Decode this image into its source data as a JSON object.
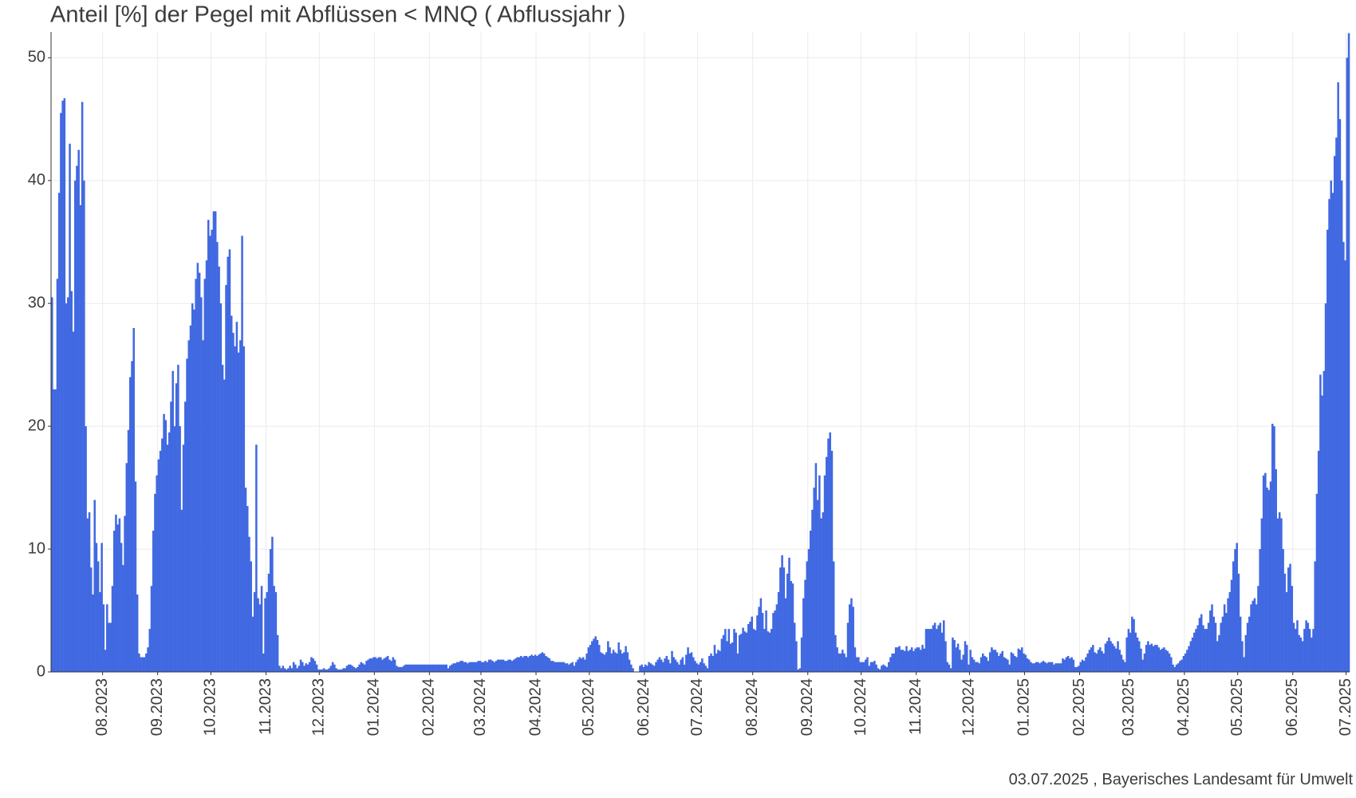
{
  "chart_data": {
    "type": "bar",
    "title": "Anteil [%] der Pegel mit Abflüssen < MNQ ( Abflussjahr )",
    "caption": "03.07.2025 , Bayerisches Landesamt für Umwelt",
    "color": "#4169e1",
    "grid": true,
    "ylim": [
      0,
      52.1
    ],
    "yticks": [
      0,
      10,
      20,
      30,
      40,
      50
    ],
    "xlim": [
      0,
      731
    ],
    "xticks": [
      {
        "value": 29,
        "label": "08.2023"
      },
      {
        "value": 60,
        "label": "09.2023"
      },
      {
        "value": 90,
        "label": "10.2023"
      },
      {
        "value": 121,
        "label": "11.2023"
      },
      {
        "value": 151,
        "label": "12.2023"
      },
      {
        "value": 182,
        "label": "01.2024"
      },
      {
        "value": 213,
        "label": "02.2024"
      },
      {
        "value": 242,
        "label": "03.2024"
      },
      {
        "value": 273,
        "label": "04.2024"
      },
      {
        "value": 303,
        "label": "05.2024"
      },
      {
        "value": 334,
        "label": "06.2024"
      },
      {
        "value": 364,
        "label": "07.2024"
      },
      {
        "value": 395,
        "label": "08.2024"
      },
      {
        "value": 426,
        "label": "09.2024"
      },
      {
        "value": 456,
        "label": "10.2024"
      },
      {
        "value": 487,
        "label": "11.2024"
      },
      {
        "value": 517,
        "label": "12.2024"
      },
      {
        "value": 548,
        "label": "01.2025"
      },
      {
        "value": 579,
        "label": "02.2025"
      },
      {
        "value": 607,
        "label": "03.2025"
      },
      {
        "value": 638,
        "label": "04.2025"
      },
      {
        "value": 668,
        "label": "05.2025"
      },
      {
        "value": 699,
        "label": "06.2025"
      },
      {
        "value": 729,
        "label": "07.2025"
      }
    ],
    "values": [
      30.5,
      23,
      23,
      32,
      39,
      45.5,
      46.5,
      46.7,
      30,
      30.5,
      43,
      31,
      27.7,
      40,
      41.2,
      42.5,
      38,
      46.4,
      40,
      20,
      12.5,
      13,
      8.5,
      6.3,
      14,
      10.5,
      9,
      6.5,
      10.5,
      5.5,
      1.8,
      5.5,
      4,
      4,
      7,
      11.5,
      12.8,
      12,
      12.5,
      10.5,
      8.7,
      12.7,
      17,
      19.7,
      24,
      25.3,
      28,
      15.5,
      6.3,
      1.5,
      1.2,
      1.2,
      1.2,
      1.5,
      2,
      3.5,
      7,
      11.5,
      14.5,
      16,
      17.3,
      18,
      19,
      21,
      20.5,
      18.5,
      19.5,
      22,
      24.5,
      20,
      23.5,
      25,
      20,
      13.2,
      18.5,
      22,
      25.5,
      27,
      28.2,
      30,
      29.5,
      32,
      33.3,
      32.5,
      30.5,
      27,
      32,
      33.5,
      36.8,
      35.5,
      36,
      37.5,
      37.5,
      35,
      33,
      30,
      25,
      23.8,
      31.5,
      33.8,
      34.4,
      29,
      27.6,
      26.5,
      28.5,
      26,
      27,
      35.5,
      26.5,
      15,
      13.5,
      11,
      9,
      4.5,
      6.5,
      18.5,
      6,
      5.5,
      7,
      1.5,
      6,
      6.5,
      8,
      10,
      11,
      7,
      6.5,
      3,
      0.5,
      0.3,
      0.5,
      0.3,
      0.2,
      0.3,
      0.5,
      0.3,
      0.8,
      0.6,
      0.3,
      0.5,
      1,
      0.8,
      0.5,
      0.7,
      0.6,
      0.8,
      1.2,
      1.1,
      0.9,
      0.6,
      0.2,
      0.2,
      0.2,
      0.3,
      0.2,
      0.2,
      0.3,
      0.5,
      0.8,
      0.6,
      0.3,
      0.2,
      0.2,
      0.2,
      0.3,
      0.3,
      0.5,
      0.6,
      0.6,
      0.5,
      0.4,
      0.3,
      0.4,
      0.6,
      0.8,
      0.7,
      0.6,
      0.9,
      1,
      1.1,
      1.1,
      1.2,
      1.2,
      1.1,
      1.2,
      1.2,
      1,
      1.1,
      1.2,
      1.3,
      1,
      0.9,
      1.2,
      1,
      0.5,
      0.4,
      0.4,
      0.4,
      0.5,
      0.6,
      0.6,
      0.6,
      0.6,
      0.6,
      0.6,
      0.6,
      0.6,
      0.6,
      0.6,
      0.6,
      0.6,
      0.6,
      0.6,
      0.6,
      0.6,
      0.6,
      0.6,
      0.6,
      0.6,
      0.6,
      0.6,
      0.6,
      0.6,
      0.3,
      0.5,
      0.6,
      0.7,
      0.7,
      0.8,
      0.8,
      0.9,
      0.9,
      0.8,
      0.8,
      0.7,
      0.8,
      0.8,
      0.8,
      0.8,
      0.8,
      0.9,
      0.9,
      0.8,
      0.8,
      0.9,
      0.8,
      1,
      1,
      0.9,
      0.8,
      0.9,
      1,
      1,
      1,
      1,
      0.9,
      0.9,
      1,
      1,
      0.9,
      1,
      1.1,
      1.2,
      1.2,
      1.3,
      1.2,
      1.3,
      1.3,
      1.2,
      1.3,
      1.4,
      1.3,
      1.4,
      1.3,
      1.4,
      1.5,
      1.6,
      1.5,
      1.3,
      1.2,
      1.1,
      0.9,
      0.9,
      0.8,
      0.8,
      0.8,
      0.8,
      0.8,
      0.8,
      0.7,
      0.7,
      0.6,
      0.7,
      0.8,
      0.5,
      0.8,
      1,
      1.2,
      1.1,
      1.2,
      1,
      1.5,
      2,
      2.2,
      2.5,
      2.7,
      2.9,
      2.6,
      2.2,
      1.6,
      1.5,
      1.4,
      1.6,
      2.5,
      2,
      1.5,
      1.8,
      1.6,
      1.5,
      2.4,
      1.8,
      1.5,
      1.6,
      2.1,
      1.6,
      1,
      0.6,
      0.3,
      0,
      0,
      0,
      0.5,
      0.6,
      0.4,
      0.6,
      0.5,
      0.8,
      0.7,
      0.6,
      0.5,
      0.8,
      1,
      1.2,
      1,
      0.8,
      1.1,
      1.3,
      1,
      0.7,
      1.7,
      1.2,
      1,
      0.8,
      0.6,
      1,
      1.2,
      0.6,
      1.4,
      2,
      1.5,
      1.6,
      1.2,
      0.9,
      0.7,
      0.6,
      0.8,
      1.1,
      0.7,
      0.5,
      0.3,
      1.3,
      1.5,
      1.3,
      2.2,
      1.5,
      1.8,
      1.7,
      2.7,
      3,
      3.5,
      2.5,
      3.5,
      2.3,
      2.4,
      3.5,
      3.2,
      1.5,
      3,
      3.1,
      3.6,
      3.3,
      3.2,
      3.9,
      4.1,
      4.5,
      3.5,
      3.4,
      4.6,
      5.3,
      6,
      4.8,
      3.5,
      5,
      3.3,
      3.2,
      3.5,
      4.8,
      5,
      5.5,
      6.5,
      8.5,
      9.5,
      8.5,
      6,
      8,
      9.3,
      7.4,
      7.2,
      4,
      2.5,
      0.2,
      0.3,
      2.8,
      6,
      7.5,
      9,
      10,
      11.5,
      13.2,
      15,
      17,
      14,
      16,
      12.5,
      13,
      16,
      17.5,
      19,
      19.5,
      18,
      9,
      3,
      2,
      1.5,
      1.5,
      1.8,
      1.5,
      1.2,
      4,
      5.5,
      6,
      5.3,
      2,
      1.2,
      1.2,
      0.8,
      0.8,
      0.8,
      1,
      1.2,
      0.5,
      0.8,
      0.8,
      0.9,
      0.6,
      0.3,
      0.2,
      0.5,
      0.6,
      0.5,
      0.4,
      0.8,
      1.2,
      1.5,
      1.5,
      2,
      2,
      2.1,
      1.8,
      1.8,
      1.7,
      2.1,
      1.7,
      1.8,
      2,
      1.7,
      1.9,
      2,
      2,
      1.8,
      2.2,
      1.9,
      3.5,
      3.5,
      3.5,
      3.5,
      3.8,
      4,
      3.5,
      3.8,
      4,
      3.2,
      4.2,
      2.5,
      0.8,
      0.6,
      0.3,
      2.8,
      2.6,
      2,
      2.3,
      1.8,
      1,
      1.4,
      2.5,
      2.2,
      0.6,
      1.8,
      1.2,
      1,
      0.8,
      0.8,
      0.7,
      1.2,
      1.5,
      1.3,
      1.2,
      0.9,
      1.6,
      2,
      1.8,
      1.8,
      1.6,
      1.3,
      1.5,
      1.7,
      1.2,
      1.1,
      1,
      0.6,
      1.6,
      1.5,
      1.3,
      1.2,
      1.9,
      1.8,
      2,
      1.5,
      1.4,
      1.1,
      1,
      0.8,
      0.7,
      0.7,
      0.8,
      0.8,
      0.7,
      0.8,
      0.9,
      0.8,
      0.7,
      0.8,
      0.8,
      0.8,
      0.6,
      0.7,
      0.7,
      0.7,
      0.7,
      1.1,
      1,
      1.2,
      1.3,
      1.1,
      1.2,
      1,
      0.4,
      0.4,
      0.5,
      0.8,
      1,
      0.9,
      1.2,
      1.5,
      1.8,
      2,
      2.2,
      1.6,
      1.5,
      1.8,
      2,
      1.7,
      1.5,
      2.3,
      2.5,
      2.8,
      2.5,
      2.3,
      2.1,
      1.9,
      2.5,
      1.8,
      1.4,
      1,
      0.8,
      2.8,
      3.5,
      3.2,
      4.5,
      4.3,
      3.2,
      2.8,
      2.5,
      1.9,
      1,
      1.5,
      2.2,
      2.5,
      2.2,
      2.3,
      2.1,
      2.2,
      2.2,
      2,
      1.8,
      1.9,
      2,
      1.8,
      1.7,
      1.5,
      1.2,
      0.6,
      0.4,
      0.6,
      0.7,
      0.9,
      1,
      1.3,
      1.5,
      1.8,
      2.1,
      2.5,
      2.8,
      3.2,
      3.5,
      3.8,
      4.4,
      4.7,
      3.8,
      3.5,
      3.5,
      4,
      5,
      5.5,
      4.5,
      4,
      2.5,
      3,
      4,
      4.5,
      5.5,
      4.8,
      6,
      6.5,
      7.5,
      9,
      10,
      10.5,
      8,
      4.5,
      2.5,
      1.2,
      3,
      4,
      4.5,
      5.5,
      5.8,
      6,
      5.5,
      7,
      10,
      12.5,
      16,
      16.2,
      15,
      14.8,
      15.5,
      20.2,
      20,
      16.5,
      12.5,
      13,
      12.5,
      10,
      8,
      6.5,
      8.5,
      8.8,
      7,
      4,
      3.5,
      4.2,
      3,
      2.8,
      2.5,
      3.5,
      4.2,
      4,
      3.5,
      2.8,
      3.5,
      9,
      14.5,
      18,
      24.2,
      22.5,
      24.5,
      30,
      36,
      38.5,
      40,
      39,
      42,
      43.5,
      48,
      45,
      40,
      35,
      33.5,
      50,
      52
    ]
  }
}
